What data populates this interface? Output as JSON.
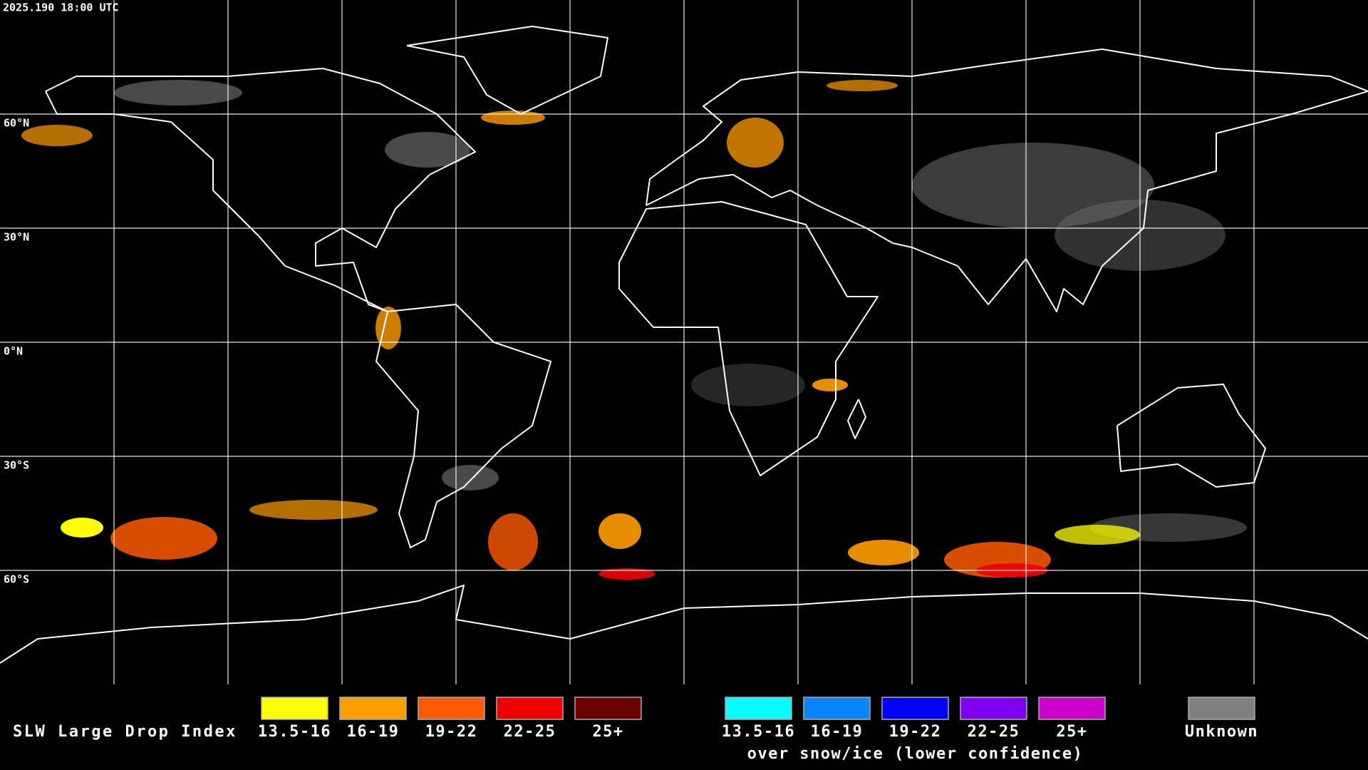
{
  "header": {
    "timestamp": "2025.190 18:00 UTC"
  },
  "map": {
    "latitude_labels": [
      "60°N",
      "30°N",
      "0°N",
      "30°S",
      "60°S"
    ]
  },
  "legend": {
    "title": "SLW Large Drop Index",
    "groups": [
      {
        "items": [
          {
            "label": "13.5-16",
            "color": "#ffff00"
          },
          {
            "label": "16-19",
            "color": "#ff9c00"
          },
          {
            "label": "19-22",
            "color": "#ff5a00"
          },
          {
            "label": "22-25",
            "color": "#f00000"
          },
          {
            "label": "25+",
            "color": "#6a0000"
          }
        ]
      },
      {
        "items": [
          {
            "label": "13.5-16",
            "color": "#00ffff"
          },
          {
            "label": "16-19",
            "color": "#0a84ff"
          },
          {
            "label": "19-22",
            "color": "#0000ff"
          },
          {
            "label": "22-25",
            "color": "#8000f0"
          },
          {
            "label": "25+",
            "color": "#cc00cc"
          }
        ],
        "note": "over snow/ice (lower confidence)"
      },
      {
        "items": [
          {
            "label": "Unknown",
            "color": "#808080"
          }
        ]
      }
    ]
  }
}
